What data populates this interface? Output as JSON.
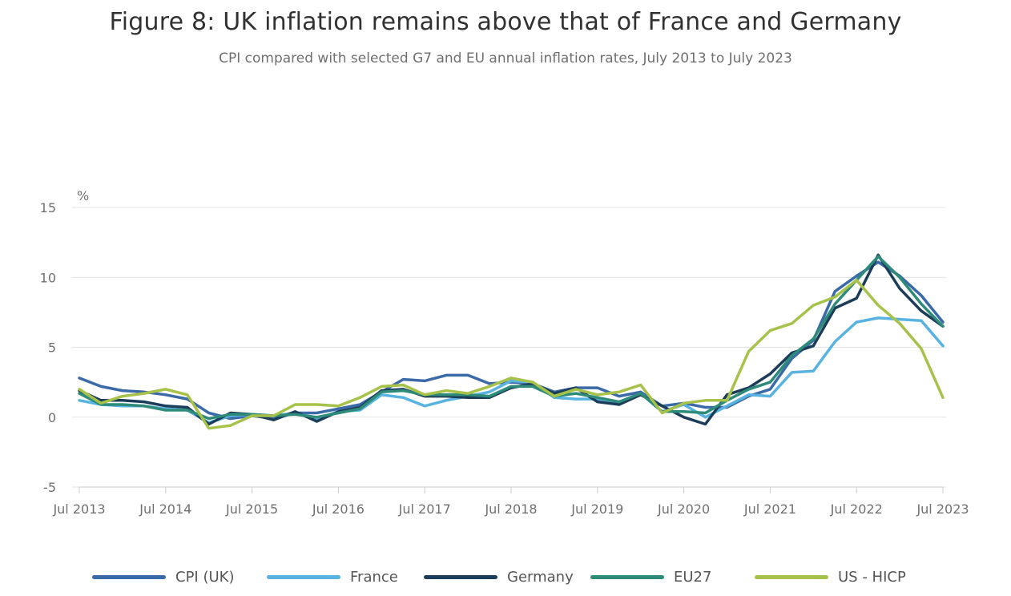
{
  "title": "Figure 8: UK inflation remains above that of France and Germany",
  "subtitle": "CPI compared with selected G7 and EU annual inflation rates, July 2013 to July 2023",
  "colors": {
    "cpi_uk": "#3b6aa8",
    "france": "#58b3e0",
    "germany": "#1c3d5a",
    "eu27": "#2e8b7a",
    "us_hicp": "#a7c24a",
    "grid": "#e4e4e4",
    "axis": "#cccccc"
  },
  "chart_data": {
    "type": "line",
    "title": "Figure 8: UK inflation remains above that of France and Germany",
    "subtitle": "CPI compared with selected G7 and EU annual inflation rates, July 2013 to July 2023",
    "ylabel": "%",
    "ylim": [
      -5,
      15
    ],
    "yticks": [
      "15",
      "10",
      "5",
      "0",
      "-5"
    ],
    "ytick_values": [
      15,
      10,
      5,
      0,
      -5
    ],
    "xlim": [
      "Jul 2013",
      "Jul 2023"
    ],
    "xticks": [
      "Jul 2013",
      "Jul 2014",
      "Jul 2015",
      "Jul 2016",
      "Jul 2017",
      "Jul 2018",
      "Jul 2019",
      "Jul 2020",
      "Jul 2021",
      "Jul 2022",
      "Jul 2023"
    ],
    "grid": true,
    "legend_position": "bottom",
    "x_resolution": "quarterly",
    "x": [
      "Jul 2013",
      "Oct 2013",
      "Jan 2014",
      "Apr 2014",
      "Jul 2014",
      "Oct 2014",
      "Jan 2015",
      "Apr 2015",
      "Jul 2015",
      "Oct 2015",
      "Jan 2016",
      "Apr 2016",
      "Jul 2016",
      "Oct 2016",
      "Jan 2017",
      "Apr 2017",
      "Jul 2017",
      "Oct 2017",
      "Jan 2018",
      "Apr 2018",
      "Jul 2018",
      "Oct 2018",
      "Jan 2019",
      "Apr 2019",
      "Jul 2019",
      "Oct 2019",
      "Jan 2020",
      "Apr 2020",
      "Jul 2020",
      "Oct 2020",
      "Jan 2021",
      "Apr 2021",
      "Jul 2021",
      "Oct 2021",
      "Jan 2022",
      "Apr 2022",
      "Jul 2022",
      "Oct 2022",
      "Jan 2023",
      "Apr 2023",
      "Jul 2023"
    ],
    "series": [
      {
        "name": "CPI (UK)",
        "color": "#3b6aa8",
        "values": [
          2.8,
          2.2,
          1.9,
          1.8,
          1.6,
          1.3,
          0.3,
          -0.1,
          0.1,
          -0.1,
          0.3,
          0.3,
          0.6,
          0.9,
          1.8,
          2.7,
          2.6,
          3.0,
          3.0,
          2.4,
          2.5,
          2.4,
          1.8,
          2.1,
          2.1,
          1.5,
          1.8,
          0.8,
          1.0,
          0.7,
          0.7,
          1.5,
          2.0,
          4.2,
          5.5,
          9.0,
          10.1,
          11.1,
          10.1,
          8.7,
          6.8
        ]
      },
      {
        "name": "France",
        "color": "#58b3e0",
        "values": [
          1.2,
          0.9,
          0.8,
          0.8,
          0.6,
          0.5,
          -0.4,
          0.1,
          0.2,
          0.1,
          0.3,
          -0.1,
          0.4,
          0.5,
          1.6,
          1.4,
          0.8,
          1.2,
          1.5,
          1.8,
          2.6,
          2.5,
          1.4,
          1.3,
          1.3,
          0.9,
          1.7,
          0.4,
          0.9,
          0.0,
          0.8,
          1.6,
          1.5,
          3.2,
          3.3,
          5.4,
          6.8,
          7.1,
          7.0,
          6.9,
          5.1
        ]
      },
      {
        "name": "Germany",
        "color": "#1c3d5a",
        "values": [
          1.9,
          1.2,
          1.2,
          1.1,
          0.8,
          0.7,
          -0.5,
          0.3,
          0.2,
          -0.2,
          0.4,
          -0.3,
          0.4,
          0.7,
          1.9,
          2.0,
          1.5,
          1.5,
          1.4,
          1.4,
          2.1,
          2.4,
          1.7,
          2.1,
          1.1,
          0.9,
          1.6,
          0.8,
          0.0,
          -0.5,
          1.6,
          2.1,
          3.1,
          4.6,
          5.1,
          7.8,
          8.5,
          11.6,
          9.2,
          7.6,
          6.5
        ]
      },
      {
        "name": "EU27",
        "color": "#2e8b7a",
        "values": [
          1.7,
          0.9,
          0.9,
          0.8,
          0.5,
          0.5,
          -0.1,
          0.2,
          0.2,
          0.1,
          0.2,
          0.0,
          0.3,
          0.6,
          1.8,
          1.9,
          1.6,
          1.6,
          1.6,
          1.5,
          2.2,
          2.2,
          1.5,
          1.7,
          1.4,
          1.1,
          1.7,
          0.4,
          0.4,
          0.3,
          1.2,
          2.0,
          2.5,
          4.4,
          5.6,
          8.1,
          9.8,
          11.5,
          10.0,
          8.1,
          6.5
        ]
      },
      {
        "name": "US - HICP",
        "color": "#a7c24a",
        "values": [
          2.0,
          1.0,
          1.5,
          1.7,
          2.0,
          1.6,
          -0.8,
          -0.6,
          0.1,
          0.1,
          0.9,
          0.9,
          0.8,
          1.4,
          2.2,
          2.3,
          1.6,
          1.9,
          1.7,
          2.2,
          2.8,
          2.5,
          1.5,
          2.0,
          1.6,
          1.8,
          2.3,
          0.3,
          1.0,
          1.2,
          1.2,
          4.7,
          6.2,
          6.7,
          8.0,
          8.6,
          9.8,
          8.0,
          6.7,
          4.9,
          1.4
        ]
      }
    ]
  }
}
